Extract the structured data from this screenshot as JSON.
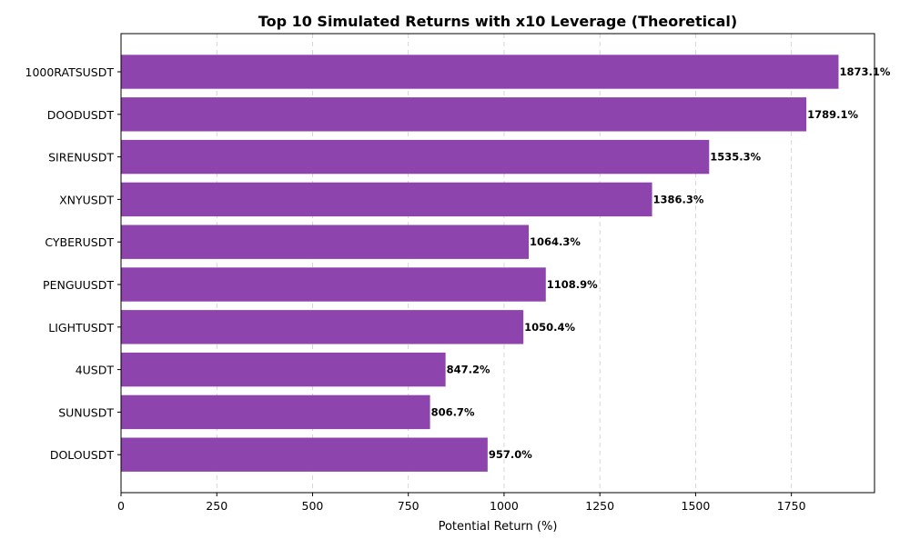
{
  "chart_data": {
    "type": "bar",
    "orientation": "horizontal",
    "title": "Top 10 Simulated Returns with x10 Leverage (Theoretical)",
    "xlabel": "Potential Return (%)",
    "ylabel": "",
    "categories": [
      "1000RATSUSDT",
      "DOODUSDT",
      "SIRENUSDT",
      "XNYUSDT",
      "CYBERUSDT",
      "PENGUUSDT",
      "LIGHTUSDT",
      "4USDT",
      "SUNUSDT",
      "DOLOUSDT"
    ],
    "values": [
      1873.1,
      1789.1,
      1535.3,
      1386.3,
      1064.3,
      1108.9,
      1050.4,
      847.2,
      806.7,
      957.0
    ],
    "data_labels": [
      "1873.1%",
      "1789.1%",
      "1535.3%",
      "1386.3%",
      "1064.3%",
      "1108.9%",
      "1050.4%",
      "847.2%",
      "806.7%",
      "957.0%"
    ],
    "xticks": [
      0,
      250,
      500,
      750,
      1000,
      1250,
      1500,
      1750
    ],
    "xlim": [
      0,
      1967
    ],
    "grid": "x-dashed",
    "bar_color": "#8e44ad"
  }
}
